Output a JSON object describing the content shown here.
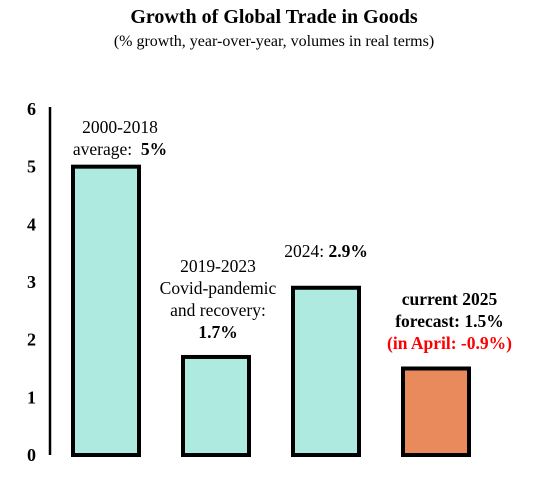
{
  "chart_data": {
    "type": "bar",
    "title": "Growth of Global Trade in Goods",
    "subtitle": "(% growth, year-over-year, volumes in real terms)",
    "categories": [
      "2000-2018 average",
      "2019-2023 Covid-pandemic and recovery",
      "2024",
      "current 2025 forecast"
    ],
    "values": [
      5.0,
      1.7,
      2.9,
      1.5
    ],
    "bar_colors": [
      "#aeeadf",
      "#aeeadf",
      "#aeeadf",
      "#e98a5c"
    ],
    "ylim": [
      0,
      6
    ],
    "yticks": [
      "0",
      "1",
      "2",
      "3",
      "4",
      "5",
      "6"
    ],
    "grid": false,
    "annotations": {
      "a1_line1": "2000-2018",
      "a1_line2": "average:",
      "a1_value": "5%",
      "a2_line1": "2019-2023",
      "a2_line2": "Covid-pandemic",
      "a2_line3": "and recovery:",
      "a2_value": "1.7%",
      "a3_label": "2024:",
      "a3_value": "2.9%",
      "a4_line1": "current 2025",
      "a4_line2": "forecast: 1.5%",
      "a4_line3": "(in April: -0.9%)"
    }
  }
}
